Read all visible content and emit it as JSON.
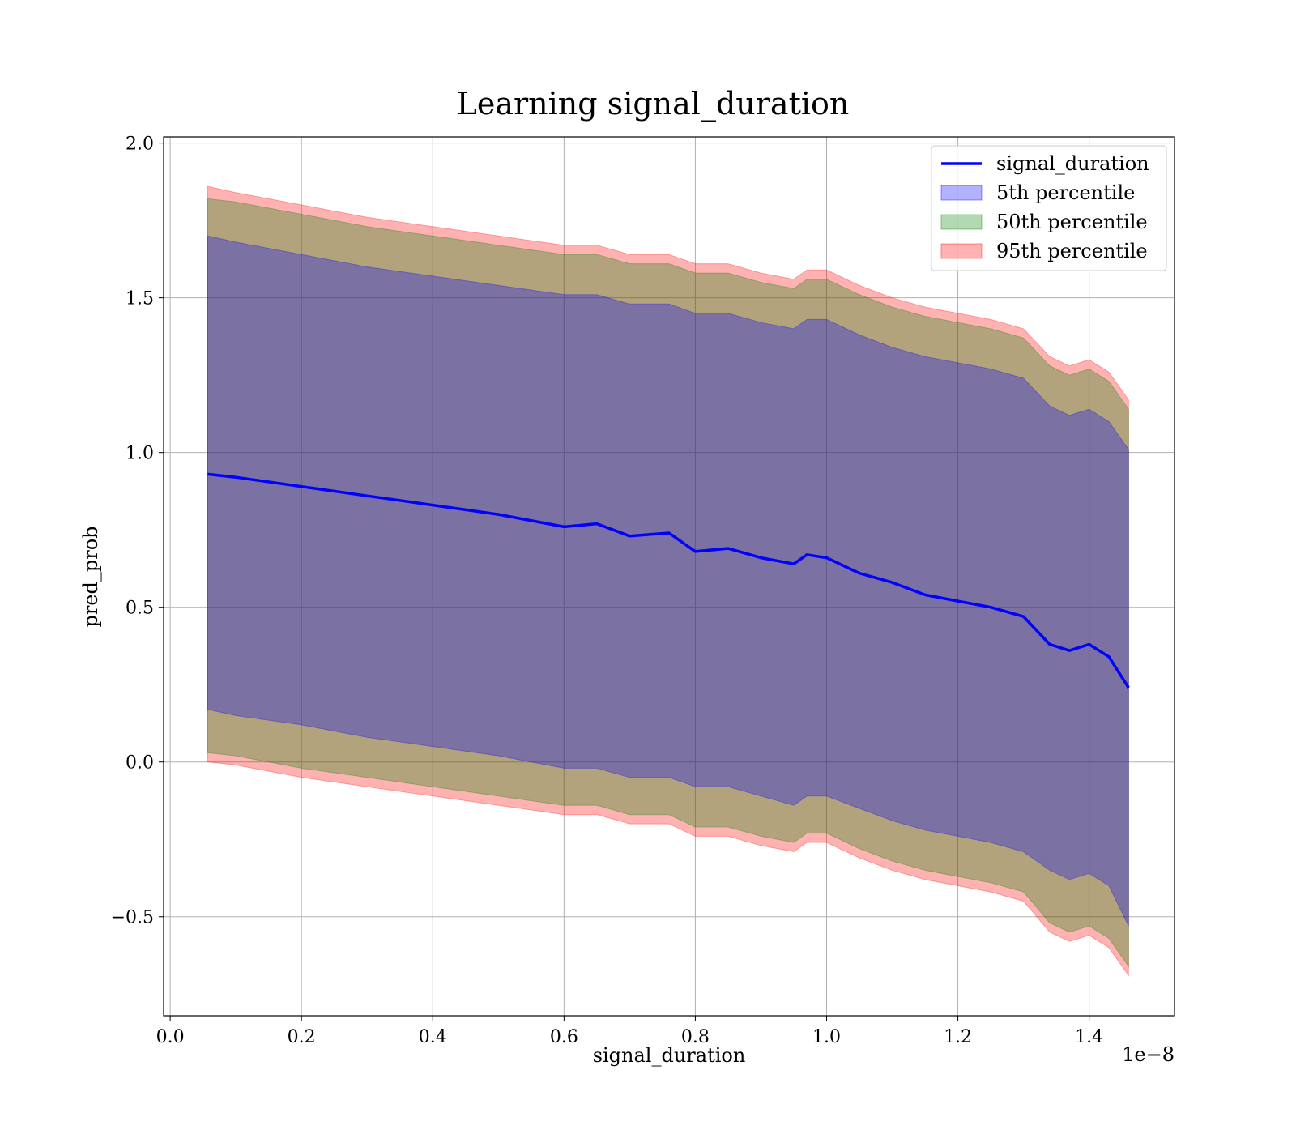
{
  "chart_data": {
    "type": "line",
    "title": "Learning signal_duration",
    "xlabel": "signal_duration",
    "ylabel": "pred_prob",
    "x_offset_label": "1e−8",
    "xlim": [
      -0.01,
      1.53
    ],
    "ylim": [
      -0.82,
      2.02
    ],
    "xticks": [
      0.0,
      0.2,
      0.4,
      0.6,
      0.8,
      1.0,
      1.2,
      1.4
    ],
    "xtick_labels": [
      "0.0",
      "0.2",
      "0.4",
      "0.6",
      "0.8",
      "1.0",
      "1.2",
      "1.4"
    ],
    "yticks": [
      -0.5,
      0.0,
      0.5,
      1.0,
      1.5,
      2.0
    ],
    "ytick_labels": [
      "−0.5",
      "0.0",
      "0.5",
      "1.0",
      "1.5",
      "2.0"
    ],
    "grid": true,
    "legend_position": "top-right",
    "x": [
      0.057,
      0.1,
      0.2,
      0.3,
      0.4,
      0.5,
      0.6,
      0.65,
      0.7,
      0.76,
      0.8,
      0.85,
      0.9,
      0.95,
      0.97,
      1.0,
      1.05,
      1.1,
      1.15,
      1.2,
      1.25,
      1.3,
      1.34,
      1.37,
      1.4,
      1.43,
      1.46
    ],
    "series": [
      {
        "name": "signal_duration",
        "kind": "line",
        "color": "#0000ff",
        "values": [
          0.93,
          0.92,
          0.89,
          0.86,
          0.83,
          0.8,
          0.76,
          0.77,
          0.73,
          0.74,
          0.68,
          0.69,
          0.66,
          0.64,
          0.67,
          0.66,
          0.61,
          0.58,
          0.54,
          0.52,
          0.5,
          0.47,
          0.38,
          0.36,
          0.38,
          0.34,
          0.24
        ]
      },
      {
        "name": "5th percentile",
        "kind": "band",
        "color": "#0000ff",
        "lower": [
          0.17,
          0.15,
          0.12,
          0.08,
          0.05,
          0.02,
          -0.02,
          -0.02,
          -0.05,
          -0.05,
          -0.08,
          -0.08,
          -0.11,
          -0.14,
          -0.11,
          -0.11,
          -0.15,
          -0.19,
          -0.22,
          -0.24,
          -0.26,
          -0.29,
          -0.35,
          -0.38,
          -0.36,
          -0.4,
          -0.53
        ],
        "upper": [
          1.7,
          1.68,
          1.64,
          1.6,
          1.57,
          1.54,
          1.51,
          1.51,
          1.48,
          1.48,
          1.45,
          1.45,
          1.42,
          1.4,
          1.43,
          1.43,
          1.38,
          1.34,
          1.31,
          1.29,
          1.27,
          1.24,
          1.15,
          1.12,
          1.14,
          1.1,
          1.01
        ]
      },
      {
        "name": "50th percentile",
        "kind": "band",
        "color": "#008000",
        "lower": [
          0.03,
          0.02,
          -0.02,
          -0.05,
          -0.08,
          -0.11,
          -0.14,
          -0.14,
          -0.17,
          -0.17,
          -0.21,
          -0.21,
          -0.24,
          -0.26,
          -0.23,
          -0.23,
          -0.28,
          -0.32,
          -0.35,
          -0.37,
          -0.39,
          -0.42,
          -0.52,
          -0.55,
          -0.53,
          -0.57,
          -0.66
        ],
        "upper": [
          1.82,
          1.81,
          1.77,
          1.73,
          1.7,
          1.67,
          1.64,
          1.64,
          1.61,
          1.61,
          1.58,
          1.58,
          1.55,
          1.53,
          1.56,
          1.56,
          1.51,
          1.47,
          1.44,
          1.42,
          1.4,
          1.37,
          1.28,
          1.25,
          1.27,
          1.23,
          1.14
        ]
      },
      {
        "name": "95th percentile",
        "kind": "band",
        "color": "#ff0000",
        "lower": [
          0.0,
          -0.01,
          -0.05,
          -0.08,
          -0.11,
          -0.14,
          -0.17,
          -0.17,
          -0.2,
          -0.2,
          -0.24,
          -0.24,
          -0.27,
          -0.29,
          -0.26,
          -0.26,
          -0.31,
          -0.35,
          -0.38,
          -0.4,
          -0.42,
          -0.45,
          -0.55,
          -0.58,
          -0.56,
          -0.6,
          -0.69
        ],
        "upper": [
          1.86,
          1.84,
          1.8,
          1.76,
          1.73,
          1.7,
          1.67,
          1.67,
          1.64,
          1.64,
          1.61,
          1.61,
          1.58,
          1.56,
          1.59,
          1.59,
          1.54,
          1.5,
          1.47,
          1.45,
          1.43,
          1.4,
          1.31,
          1.28,
          1.3,
          1.26,
          1.17
        ]
      }
    ]
  }
}
